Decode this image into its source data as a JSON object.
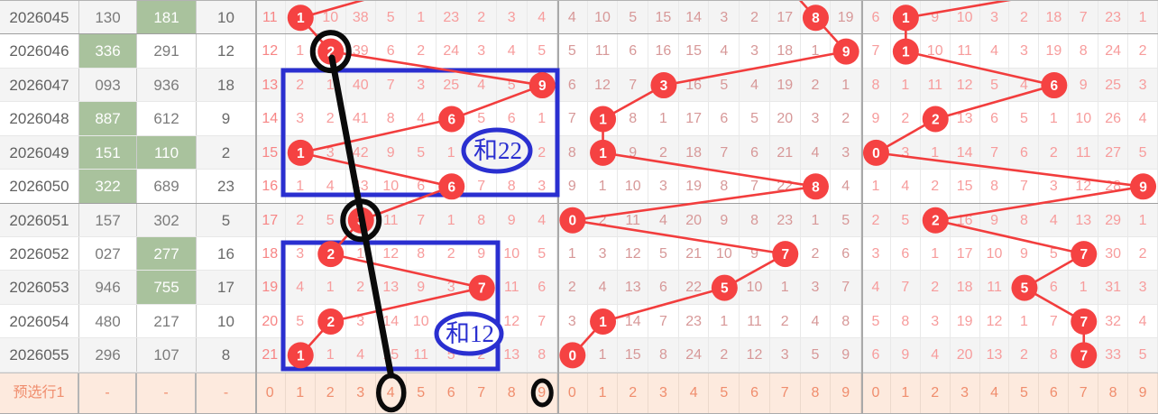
{
  "colors": {
    "red_line": "#f23d3d",
    "red_circle": "#f54242",
    "blue_annotation": "#2a2fd0",
    "green_cell": "#a9c29d",
    "preselect_bg": "#fdeade",
    "row_stripe": "#f4f4f4"
  },
  "rows": [
    {
      "period": "2026045",
      "num1": "130",
      "num2": "181",
      "sum": "10",
      "green": [
        "num2"
      ],
      "s1": [
        "11",
        "1",
        "10",
        "38",
        "5",
        "1",
        "23",
        "2",
        "3",
        "4"
      ],
      "h1": 1,
      "s2": [
        "4",
        "10",
        "5",
        "15",
        "14",
        "3",
        "2",
        "17",
        "8",
        "19"
      ],
      "h2": 8,
      "s3": [
        "6",
        "1",
        "9",
        "10",
        "3",
        "2",
        "18",
        "7",
        "23",
        "1"
      ],
      "h3": 1
    },
    {
      "period": "2026046",
      "num1": "336",
      "num2": "291",
      "sum": "12",
      "green": [
        "num1"
      ],
      "s1": [
        "12",
        "1",
        "2",
        "39",
        "6",
        "2",
        "24",
        "3",
        "4",
        "5"
      ],
      "h1": 2,
      "s2": [
        "5",
        "11",
        "6",
        "16",
        "15",
        "4",
        "3",
        "18",
        "1",
        "9"
      ],
      "h2": 9,
      "s3": [
        "7",
        "1",
        "10",
        "11",
        "4",
        "3",
        "19",
        "8",
        "24",
        "2"
      ],
      "h3": 1
    },
    {
      "period": "2026047",
      "num1": "093",
      "num2": "936",
      "sum": "18",
      "green": [],
      "s1": [
        "13",
        "2",
        "1",
        "40",
        "7",
        "3",
        "25",
        "4",
        "5",
        "9"
      ],
      "h1": 9,
      "s2": [
        "6",
        "12",
        "7",
        "3",
        "16",
        "5",
        "4",
        "19",
        "2",
        "1"
      ],
      "h2": 3,
      "s3": [
        "8",
        "1",
        "11",
        "12",
        "5",
        "4",
        "6",
        "9",
        "25",
        "3"
      ],
      "h3": 6
    },
    {
      "period": "2026048",
      "num1": "887",
      "num2": "612",
      "sum": "9",
      "green": [
        "num1"
      ],
      "s1": [
        "14",
        "3",
        "2",
        "41",
        "8",
        "4",
        "6",
        "5",
        "6",
        "1"
      ],
      "h1": 6,
      "s2": [
        "7",
        "1",
        "8",
        "1",
        "17",
        "6",
        "5",
        "20",
        "3",
        "2"
      ],
      "h2": 1,
      "s3": [
        "9",
        "2",
        "2",
        "13",
        "6",
        "5",
        "1",
        "10",
        "26",
        "4"
      ],
      "h3": 2
    },
    {
      "period": "2026049",
      "num1": "151",
      "num2": "110",
      "sum": "2",
      "green": [
        "num1",
        "num2"
      ],
      "s1": [
        "15",
        "1",
        "3",
        "42",
        "9",
        "5",
        "1",
        "6",
        "7",
        "2"
      ],
      "h1": 1,
      "s2": [
        "8",
        "1",
        "9",
        "2",
        "18",
        "7",
        "6",
        "21",
        "4",
        "3"
      ],
      "h2": 1,
      "s3": [
        "0",
        "3",
        "1",
        "14",
        "7",
        "6",
        "2",
        "11",
        "27",
        "5"
      ],
      "h3": 0
    },
    {
      "period": "2026050",
      "num1": "322",
      "num2": "689",
      "sum": "23",
      "green": [
        "num1"
      ],
      "s1": [
        "16",
        "1",
        "4",
        "43",
        "10",
        "6",
        "6",
        "7",
        "8",
        "3"
      ],
      "h1": 6,
      "s2": [
        "9",
        "1",
        "10",
        "3",
        "19",
        "8",
        "7",
        "22",
        "8",
        "4"
      ],
      "h2": 8,
      "s3": [
        "1",
        "4",
        "2",
        "15",
        "8",
        "7",
        "3",
        "12",
        "28",
        "9"
      ],
      "h3": 9
    },
    {
      "period": "2026051",
      "num1": "157",
      "num2": "302",
      "sum": "5",
      "green": [],
      "s1": [
        "17",
        "2",
        "5",
        "3",
        "11",
        "7",
        "1",
        "8",
        "9",
        "4"
      ],
      "h1": 3,
      "s2": [
        "0",
        "2",
        "11",
        "4",
        "20",
        "9",
        "8",
        "23",
        "1",
        "5"
      ],
      "h2": 0,
      "s3": [
        "2",
        "5",
        "2",
        "16",
        "9",
        "8",
        "4",
        "13",
        "29",
        "1"
      ],
      "h3": 2
    },
    {
      "period": "2026052",
      "num1": "027",
      "num2": "277",
      "sum": "16",
      "green": [
        "num2"
      ],
      "s1": [
        "18",
        "3",
        "2",
        "1",
        "12",
        "8",
        "2",
        "9",
        "10",
        "5"
      ],
      "h1": 2,
      "s2": [
        "1",
        "3",
        "12",
        "5",
        "21",
        "10",
        "9",
        "7",
        "2",
        "6"
      ],
      "h2": 7,
      "s3": [
        "3",
        "6",
        "1",
        "17",
        "10",
        "9",
        "5",
        "7",
        "30",
        "2"
      ],
      "h3": 7
    },
    {
      "period": "2026053",
      "num1": "946",
      "num2": "755",
      "sum": "17",
      "green": [
        "num2"
      ],
      "s1": [
        "19",
        "4",
        "1",
        "2",
        "13",
        "9",
        "3",
        "7",
        "11",
        "6"
      ],
      "h1": 7,
      "s2": [
        "2",
        "4",
        "13",
        "6",
        "22",
        "5",
        "10",
        "1",
        "3",
        "7"
      ],
      "h2": 5,
      "s3": [
        "4",
        "7",
        "2",
        "18",
        "11",
        "5",
        "6",
        "1",
        "31",
        "3"
      ],
      "h3": 5
    },
    {
      "period": "2026054",
      "num1": "480",
      "num2": "217",
      "sum": "10",
      "green": [],
      "s1": [
        "20",
        "5",
        "2",
        "3",
        "14",
        "10",
        "4",
        "1",
        "12",
        "7"
      ],
      "h1": 2,
      "s2": [
        "3",
        "1",
        "14",
        "7",
        "23",
        "1",
        "11",
        "2",
        "4",
        "8"
      ],
      "h2": 1,
      "s3": [
        "5",
        "8",
        "3",
        "19",
        "12",
        "1",
        "7",
        "7",
        "32",
        "4"
      ],
      "h3": 7
    },
    {
      "period": "2026055",
      "num1": "296",
      "num2": "107",
      "sum": "8",
      "green": [],
      "s1": [
        "21",
        "1",
        "1",
        "4",
        "15",
        "11",
        "5",
        "2",
        "13",
        "8"
      ],
      "h1": 1,
      "s2": [
        "0",
        "1",
        "15",
        "8",
        "24",
        "2",
        "12",
        "3",
        "5",
        "9"
      ],
      "h2": 0,
      "s3": [
        "6",
        "9",
        "4",
        "20",
        "13",
        "2",
        "8",
        "7",
        "33",
        "5"
      ],
      "h3": 7
    }
  ],
  "preselect": {
    "label": "预选行1",
    "num1": "-",
    "num2": "-",
    "sum": "-",
    "s1": [
      "0",
      "1",
      "2",
      "3",
      "4",
      "5",
      "6",
      "7",
      "8",
      "9"
    ],
    "s2": [
      "0",
      "1",
      "2",
      "3",
      "4",
      "5",
      "6",
      "7",
      "8",
      "9"
    ],
    "s3": [
      "0",
      "1",
      "2",
      "3",
      "4",
      "5",
      "6",
      "7",
      "8",
      "9"
    ]
  },
  "annotations": {
    "sum_oval_1_text": "和22",
    "sum_oval_2_text": "和12",
    "black_ring_rows": [
      2,
      7
    ],
    "black_oval_preselect_digits": [
      4,
      9
    ]
  }
}
